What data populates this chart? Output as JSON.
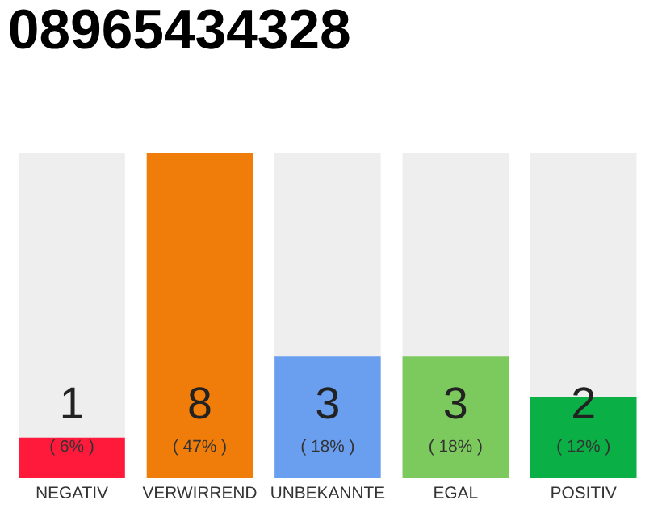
{
  "chart_data": {
    "type": "bar",
    "title": "08965434328",
    "categories": [
      "NEGATIV",
      "VERWIRREND",
      "UNBEKANNTE",
      "EGAL",
      "POSITIV"
    ],
    "values": [
      1,
      8,
      3,
      3,
      2
    ],
    "colors": [
      "#ff1a3c",
      "#f07d0a",
      "#6a9ff0",
      "#7cc95e",
      "#0ab045"
    ],
    "ylim": [
      0,
      8
    ],
    "tick_labels": "x",
    "data_labels": true,
    "grid": false,
    "legend": false,
    "annotations": [
      "( 6% )",
      "( 47% )",
      "( 18% )",
      "( 18% )",
      "( 12% )"
    ]
  }
}
